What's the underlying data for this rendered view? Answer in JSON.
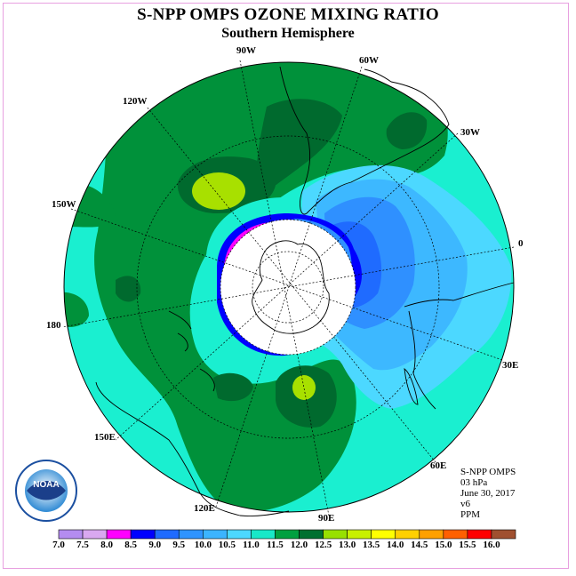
{
  "title": "S-NPP OMPS OZONE MIXING RATIO",
  "subtitle": "Southern Hemisphere",
  "longitude_labels": {
    "w90": "90W",
    "w60": "60W",
    "w30": "30W",
    "e0": "0",
    "e30": "30E",
    "e60": "60E",
    "e90": "90E",
    "e120": "120E",
    "e150": "150E",
    "e180": "180",
    "w150": "150W",
    "w120": "120W"
  },
  "info": {
    "product": "S-NPP OMPS",
    "level": "03 hPa",
    "date": "June 30, 2017",
    "version": "v6",
    "units": "PPM"
  },
  "logo": {
    "text": "NOAA",
    "ring_text": "NATIONAL OCEANIC AND ATMOSPHERIC ADMINISTRATION · U.S. DEPARTMENT OF COMMERCE"
  },
  "colorbar": {
    "levels": [
      "7.0",
      "7.5",
      "8.0",
      "8.5",
      "9.0",
      "9.5",
      "10.0",
      "10.5",
      "11.0",
      "11.5",
      "12.0",
      "12.5",
      "13.0",
      "13.5",
      "14.0",
      "14.5",
      "15.0",
      "15.5",
      "16.0"
    ],
    "colors": [
      "#b48cf0",
      "#d9a8f0",
      "#ff00ff",
      "#0000ff",
      "#1f6bff",
      "#2f94ff",
      "#3cb4ff",
      "#4cd8ff",
      "#18e8c8",
      "#00a040",
      "#007030",
      "#98e000",
      "#c8f000",
      "#ffff00",
      "#ffd000",
      "#ffa000",
      "#ff6000",
      "#ff0000",
      "#a05030"
    ]
  },
  "colors": {
    "ocean_teal": "#1aefd0",
    "green_mid": "#00913a",
    "green_dark": "#006a2e",
    "lime": "#a8e000",
    "blue_1": "#3db8ff",
    "blue_2": "#2f90ff",
    "blue_3": "#1f6bff",
    "deep_blue": "#0000ff",
    "magenta": "#ff00ff",
    "violet": "#c090ff"
  }
}
